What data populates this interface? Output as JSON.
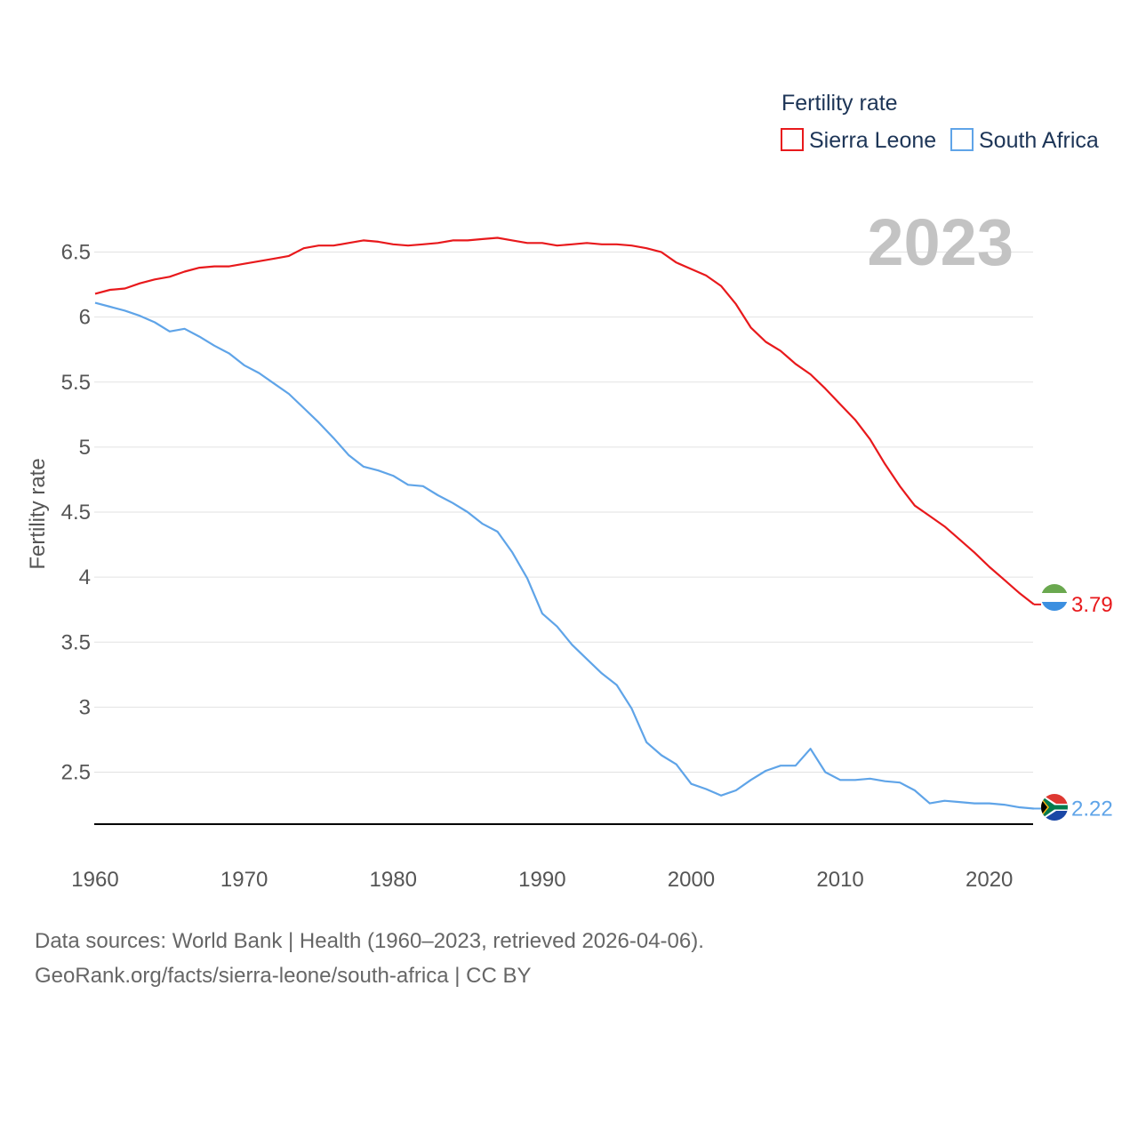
{
  "chart_data": {
    "type": "line",
    "title": "Fertility rate",
    "current_year": "2023",
    "xlabel": "",
    "ylabel": "Fertility rate",
    "xlim": [
      1960,
      2023
    ],
    "ylim": [
      2.1,
      6.75
    ],
    "x_ticks": [
      {
        "value": 1960,
        "label": "1960"
      },
      {
        "value": 1970,
        "label": "1970"
      },
      {
        "value": 1980,
        "label": "1980"
      },
      {
        "value": 1990,
        "label": "1990"
      },
      {
        "value": 2000,
        "label": "2000"
      },
      {
        "value": 2010,
        "label": "2010"
      },
      {
        "value": 2020,
        "label": "2020"
      }
    ],
    "y_ticks": [
      {
        "value": 2.5,
        "label": "2.5"
      },
      {
        "value": 3,
        "label": "3"
      },
      {
        "value": 3.5,
        "label": "3.5"
      },
      {
        "value": 4,
        "label": "4"
      },
      {
        "value": 4.5,
        "label": "4.5"
      },
      {
        "value": 5,
        "label": "5"
      },
      {
        "value": 5.5,
        "label": "5.5"
      },
      {
        "value": 6,
        "label": "6"
      },
      {
        "value": 6.5,
        "label": "6.5"
      }
    ],
    "x": [
      1960,
      1961,
      1962,
      1963,
      1964,
      1965,
      1966,
      1967,
      1968,
      1969,
      1970,
      1971,
      1972,
      1973,
      1974,
      1975,
      1976,
      1977,
      1978,
      1979,
      1980,
      1981,
      1982,
      1983,
      1984,
      1985,
      1986,
      1987,
      1988,
      1989,
      1990,
      1991,
      1992,
      1993,
      1994,
      1995,
      1996,
      1997,
      1998,
      1999,
      2000,
      2001,
      2002,
      2003,
      2004,
      2005,
      2006,
      2007,
      2008,
      2009,
      2010,
      2011,
      2012,
      2013,
      2014,
      2015,
      2016,
      2017,
      2018,
      2019,
      2020,
      2021,
      2022,
      2023
    ],
    "series": [
      {
        "name": "Sierra Leone",
        "color": "#e8191c",
        "end_label": "3.79",
        "flag": "sierra-leone-flag-icon",
        "values": [
          6.18,
          6.21,
          6.22,
          6.26,
          6.29,
          6.31,
          6.35,
          6.38,
          6.39,
          6.39,
          6.41,
          6.43,
          6.45,
          6.47,
          6.53,
          6.55,
          6.55,
          6.57,
          6.59,
          6.58,
          6.56,
          6.55,
          6.56,
          6.57,
          6.59,
          6.59,
          6.6,
          6.61,
          6.59,
          6.57,
          6.57,
          6.55,
          6.56,
          6.57,
          6.56,
          6.56,
          6.55,
          6.53,
          6.5,
          6.42,
          6.37,
          6.32,
          6.24,
          6.1,
          5.92,
          5.81,
          5.74,
          5.64,
          5.56,
          5.45,
          5.33,
          5.21,
          5.06,
          4.87,
          4.7,
          4.55,
          4.47,
          4.39,
          4.29,
          4.19,
          4.08,
          3.98,
          3.88,
          3.79
        ]
      },
      {
        "name": "South Africa",
        "color": "#5fa4e8",
        "end_label": "2.22",
        "flag": "south-africa-flag-icon",
        "values": [
          6.11,
          6.08,
          6.05,
          6.01,
          5.96,
          5.89,
          5.91,
          5.85,
          5.78,
          5.72,
          5.63,
          5.57,
          5.49,
          5.41,
          5.3,
          5.19,
          5.07,
          4.94,
          4.85,
          4.82,
          4.78,
          4.71,
          4.7,
          4.63,
          4.57,
          4.5,
          4.41,
          4.35,
          4.19,
          3.99,
          3.72,
          3.62,
          3.48,
          3.37,
          3.26,
          3.17,
          2.99,
          2.73,
          2.63,
          2.56,
          2.41,
          2.37,
          2.32,
          2.36,
          2.44,
          2.51,
          2.55,
          2.55,
          2.68,
          2.5,
          2.44,
          2.44,
          2.45,
          2.43,
          2.42,
          2.36,
          2.26,
          2.28,
          2.27,
          2.26,
          2.26,
          2.25,
          2.23,
          2.22
        ]
      }
    ],
    "legend_title": "Fertility rate",
    "legend_position": "top-right"
  },
  "source": {
    "line1": "Data sources: World Bank | Health (1960–2023, retrieved 2026-04-06).",
    "line2": "GeoRank.org/facts/sierra-leone/south-africa | CC BY"
  }
}
